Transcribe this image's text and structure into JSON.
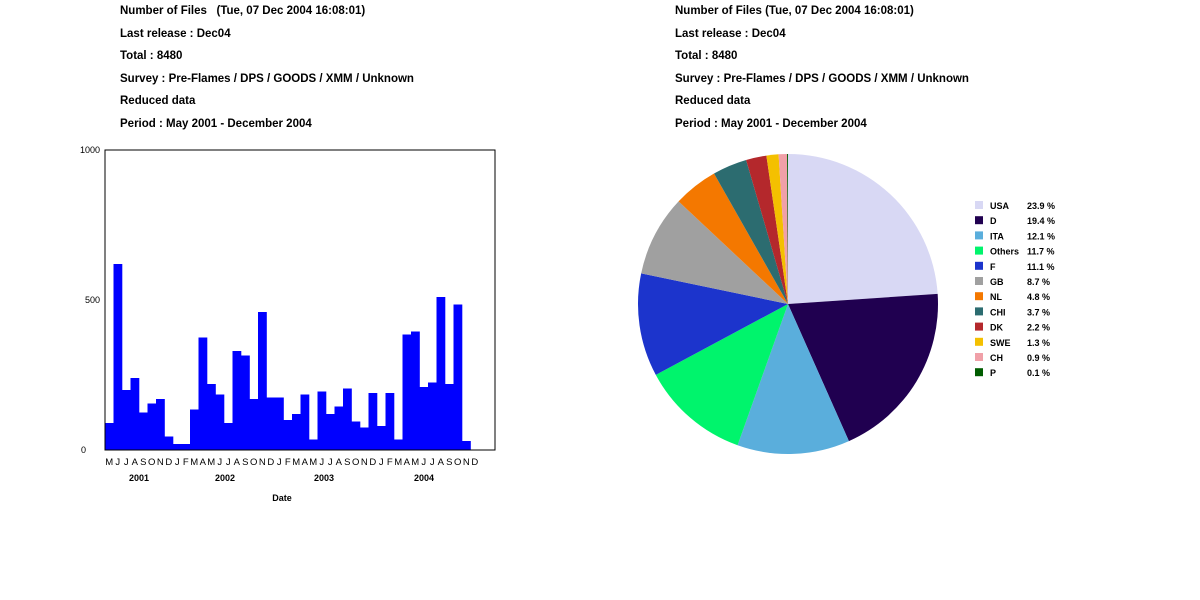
{
  "left_header": {
    "line1": "Number of Files   (Tue, 07 Dec 2004 16:08:01)",
    "line2": "Last release : Dec04",
    "line3": "Total : 8480",
    "line4": "Survey : Pre-Flames / DPS / GOODS / XMM / Unknown",
    "line5": "Reduced data",
    "line6": "Period : May 2001 - December 2004"
  },
  "right_header": {
    "line1": "Number of Files (Tue, 07 Dec 2004 16:08:01)",
    "line2": "Last release : Dec04",
    "line3": "Total : 8480",
    "line4": "Survey : Pre-Flames / DPS / GOODS / XMM / Unknown",
    "line5": "Reduced data",
    "line6": "Period : May 2001 - December 2004"
  },
  "chart_data": [
    {
      "type": "bar",
      "xlabel": "Date",
      "ylabel": "",
      "ylim": [
        0,
        1000
      ],
      "yticks": [
        "1000",
        "500",
        "0"
      ],
      "bar_color": "#0000ff",
      "month_labels": [
        "M",
        "J",
        "J",
        "A",
        "S",
        "O",
        "N",
        "D",
        "J",
        "F",
        "M",
        "A",
        "M",
        "J",
        "J",
        "A",
        "S",
        "O",
        "N",
        "D",
        "J",
        "F",
        "M",
        "A",
        "M",
        "J",
        "J",
        "A",
        "S",
        "O",
        "N",
        "D",
        "J",
        "F",
        "M",
        "A",
        "M",
        "J",
        "J",
        "A",
        "S",
        "O",
        "N",
        "D"
      ],
      "year_labels": [
        "2001",
        "2002",
        "2003",
        "2004"
      ],
      "values": [
        90,
        620,
        200,
        240,
        125,
        155,
        170,
        45,
        20,
        20,
        135,
        375,
        220,
        185,
        90,
        330,
        315,
        170,
        460,
        175,
        175,
        100,
        120,
        185,
        35,
        195,
        120,
        145,
        205,
        95,
        75,
        190,
        80,
        190,
        35,
        385,
        395,
        210,
        225,
        510,
        220,
        485,
        30,
        0
      ]
    },
    {
      "type": "pie",
      "slices": [
        {
          "label": "USA",
          "pct_text": "23.9 %",
          "value": 23.9,
          "color": "#d8d8f4"
        },
        {
          "label": "D",
          "pct_text": "19.4 %",
          "value": 19.4,
          "color": "#200050"
        },
        {
          "label": "ITA",
          "pct_text": "12.1 %",
          "value": 12.1,
          "color": "#5aaedc"
        },
        {
          "label": "Others",
          "pct_text": "11.7 %",
          "value": 11.7,
          "color": "#00f46c"
        },
        {
          "label": "F",
          "pct_text": "11.1 %",
          "value": 11.1,
          "color": "#1c34cc"
        },
        {
          "label": "GB",
          "pct_text": "8.7 %",
          "value": 8.7,
          "color": "#a0a0a0"
        },
        {
          "label": "NL",
          "pct_text": "4.8 %",
          "value": 4.8,
          "color": "#f47800"
        },
        {
          "label": "CHI",
          "pct_text": "3.7 %",
          "value": 3.7,
          "color": "#2c6c70"
        },
        {
          "label": "DK",
          "pct_text": "2.2 %",
          "value": 2.2,
          "color": "#b4282c"
        },
        {
          "label": "SWE",
          "pct_text": "1.3 %",
          "value": 1.3,
          "color": "#f4c000"
        },
        {
          "label": "CH",
          "pct_text": "0.9 %",
          "value": 0.9,
          "color": "#f0a0a8"
        },
        {
          "label": "P",
          "pct_text": "0.1 %",
          "value": 0.1,
          "color": "#005c00"
        }
      ]
    }
  ]
}
